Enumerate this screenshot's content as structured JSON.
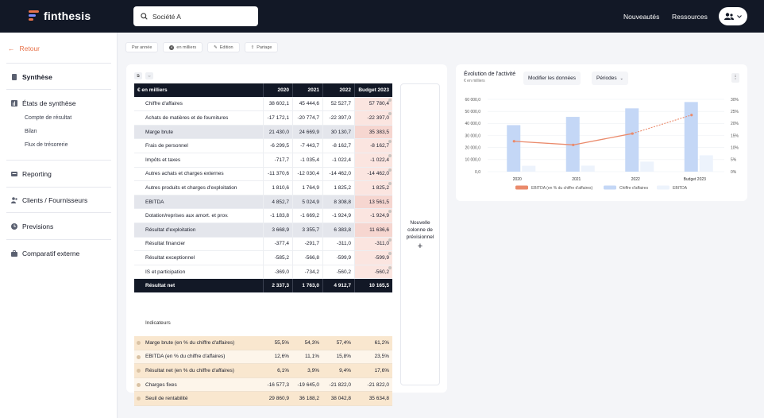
{
  "app": {
    "name": "finthesis"
  },
  "topbar": {
    "search_value": "Société A",
    "nav": [
      "Nouveautés",
      "Ressources"
    ]
  },
  "sidebar": {
    "back_label": "Retour",
    "items": [
      {
        "label": "Synthèse",
        "icon": "document-icon"
      },
      {
        "label": "États de synthèse",
        "icon": "chart-icon",
        "children": [
          "Compte de résultat",
          "Bilan",
          "Flux de trésorerie"
        ]
      },
      {
        "label": "Reporting",
        "icon": "reporting-icon"
      },
      {
        "label": "Clients / Fournisseurs",
        "icon": "users-icon"
      },
      {
        "label": "Previsions",
        "icon": "clock-icon"
      },
      {
        "label": "Comparatif externe",
        "icon": "briefcase-icon"
      }
    ]
  },
  "filters": [
    "Par année",
    "en milliers",
    "Edition",
    "Partage"
  ],
  "table": {
    "unit_label": "€ en milliers",
    "columns": [
      "2020",
      "2021",
      "2022",
      "Budget 2023"
    ],
    "rows": [
      {
        "label": "Chiffre d'affaires",
        "values": [
          "38 602,1",
          "45 444,6",
          "52 527,7",
          "57 780,4"
        ],
        "style": "normal",
        "dot": true
      },
      {
        "label": "Achats de matières et de fournitures",
        "values": [
          "-17 172,1",
          "-20 774,7",
          "-22 397,0",
          "-22 397,0"
        ],
        "style": "normal",
        "dot": true
      },
      {
        "label": "Marge brute",
        "values": [
          "21 430,0",
          "24 669,9",
          "30 130,7",
          "35 383,5"
        ],
        "style": "gray",
        "dot": false
      },
      {
        "label": "Frais de personnel",
        "values": [
          "-6 299,5",
          "-7 443,7",
          "-8 162,7",
          "-8 162,7"
        ],
        "style": "normal",
        "dot": true
      },
      {
        "label": "Impôts et taxes",
        "values": [
          "-717,7",
          "-1 035,4",
          "-1 022,4",
          "-1 022,4"
        ],
        "style": "normal",
        "dot": true
      },
      {
        "label": "Autres achats et charges externes",
        "values": [
          "-11 370,6",
          "-12 030,4",
          "-14 462,0",
          "-14 462,0"
        ],
        "style": "normal",
        "dot": true
      },
      {
        "label": "Autres produits et charges d'exploitation",
        "values": [
          "1 810,6",
          "1 764,9",
          "1 825,2",
          "1 825,2"
        ],
        "style": "normal",
        "dot": true
      },
      {
        "label": "EBITDA",
        "values": [
          "4 852,7",
          "5 024,9",
          "8 308,8",
          "13 561,5"
        ],
        "style": "gray",
        "dot": false
      },
      {
        "label": "Dotation/reprises aux amort. et prov.",
        "values": [
          "-1 183,8",
          "-1 669,2",
          "-1 924,9",
          "-1 924,9"
        ],
        "style": "normal",
        "dot": true
      },
      {
        "label": "Résultat d'exploitation",
        "values": [
          "3 668,9",
          "3 355,7",
          "6 383,8",
          "11 636,6"
        ],
        "style": "gray",
        "dot": false
      },
      {
        "label": "Résultat financier",
        "values": [
          "-377,4",
          "-291,7",
          "-311,0",
          "-311,0"
        ],
        "style": "normal",
        "dot": true
      },
      {
        "label": "Résultat exceptionnel",
        "values": [
          "-585,2",
          "-566,8",
          "-599,9",
          "-599,9"
        ],
        "style": "normal",
        "dot": true
      },
      {
        "label": "IS et participation",
        "values": [
          "-369,0",
          "-734,2",
          "-560,2",
          "-560,2"
        ],
        "style": "normal",
        "dot": true
      },
      {
        "label": "Résultat net",
        "values": [
          "2 337,3",
          "1 763,0",
          "4 912,7",
          "10 165,5"
        ],
        "style": "dark",
        "dot": false
      }
    ],
    "indicators_title": "Indicateurs",
    "indicators": [
      {
        "label": "Marge brute (en % du chiffre d'affaires)",
        "values": [
          "55,5%",
          "54,3%",
          "57,4%",
          "61,2%"
        ],
        "style": "a"
      },
      {
        "label": "EBITDA (en % du chiffre d'affaires)",
        "values": [
          "12,6%",
          "11,1%",
          "15,8%",
          "23,5%"
        ],
        "style": "b"
      },
      {
        "label": "Résultat net (en % du chiffre d'affaires)",
        "values": [
          "6,1%",
          "3,9%",
          "9,4%",
          "17,6%"
        ],
        "style": "a"
      },
      {
        "label": "Charges fixes",
        "values": [
          "-16 577,3",
          "-19 645,0",
          "-21 822,0",
          "-21 822,0"
        ],
        "style": "b"
      },
      {
        "label": "Seuil de rentabilité",
        "values": [
          "29 860,9",
          "36 188,2",
          "38 042,8",
          "35 634,8"
        ],
        "style": "a"
      }
    ],
    "new_column_label": "Nouvelle colonne de prévisionnel",
    "new_column_plus": "+"
  },
  "chart_panel": {
    "title": "Évolution de l'activité",
    "subtitle": "€ en milliers",
    "modify_label": "Modifier les données",
    "period_label": "Périodes"
  },
  "chart_data": {
    "type": "bar",
    "categories": [
      "2020",
      "2021",
      "2022",
      "Budget 2023"
    ],
    "series": [
      {
        "name": "Chiffre d'affaires",
        "type": "bar",
        "axis": "left",
        "values": [
          38602.1,
          45444.6,
          52527.7,
          57780.4
        ],
        "color": "#c4d7f6"
      },
      {
        "name": "EBITDA",
        "type": "bar",
        "axis": "left",
        "values": [
          4852.7,
          5024.9,
          8308.8,
          13561.5
        ],
        "color": "#edf3fc"
      },
      {
        "name": "EBITDA (en % du chiffre d'affaires)",
        "type": "line",
        "axis": "right",
        "values": [
          12.6,
          11.1,
          15.8,
          23.5
        ],
        "color": "#ea8a6b"
      }
    ],
    "ylim_left": [
      0,
      60000
    ],
    "ylim_right": [
      0,
      30
    ],
    "y_ticks_left": [
      "0,0",
      "10 000,0",
      "20 000,0",
      "30 000,0",
      "40 000,0",
      "50 000,0",
      "60 000,0"
    ],
    "y_ticks_right": [
      "0%",
      "5%",
      "10%",
      "15%",
      "20%",
      "25%",
      "30%"
    ],
    "grid": true,
    "legend": "bottom",
    "legend_entries": [
      "EBITDA (en % du chiffre d'affaires)",
      "Chiffre d'affaires",
      "EBITDA"
    ]
  }
}
